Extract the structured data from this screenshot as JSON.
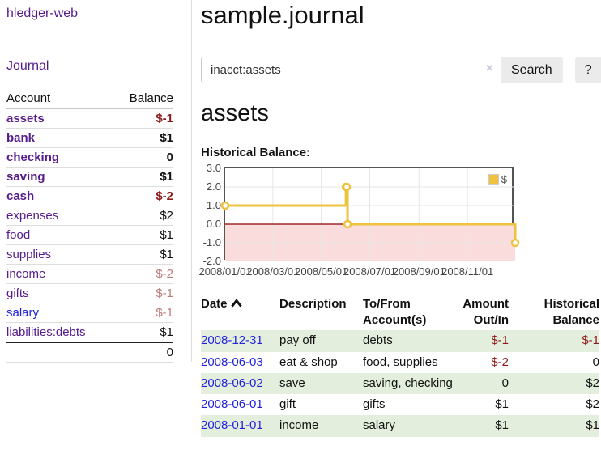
{
  "app": {
    "brand": "hledger-web",
    "nav_journal": "Journal"
  },
  "sidebar": {
    "account_header": "Account",
    "balance_header": "Balance",
    "accounts": [
      {
        "name": "assets",
        "balance": "$-1",
        "level": 1,
        "bold": true,
        "balance_class": "neg-strong"
      },
      {
        "name": "bank",
        "balance": "$1",
        "level": 2,
        "bold": true,
        "balance_class": ""
      },
      {
        "name": "checking",
        "balance": "0",
        "level": 3,
        "bold": true,
        "balance_class": ""
      },
      {
        "name": "saving",
        "balance": "$1",
        "level": 3,
        "bold": true,
        "balance_class": ""
      },
      {
        "name": "cash",
        "balance": "$-2",
        "level": 2,
        "bold": true,
        "balance_class": "neg-strong"
      },
      {
        "name": "expenses",
        "balance": "$2",
        "level": 1,
        "bold": false,
        "balance_class": ""
      },
      {
        "name": "food",
        "balance": "$1",
        "level": 2,
        "bold": false,
        "balance_class": ""
      },
      {
        "name": "supplies",
        "balance": "$1",
        "level": 2,
        "bold": false,
        "balance_class": ""
      },
      {
        "name": "income",
        "balance": "$-2",
        "level": 1,
        "bold": false,
        "balance_class": "neg-soft"
      },
      {
        "name": "gifts",
        "balance": "$-1",
        "level": 2,
        "bold": false,
        "balance_class": "neg-soft"
      },
      {
        "name": "salary",
        "balance": "$-1",
        "level": 2,
        "bold": false,
        "balance_class": "neg-soft",
        "link_class": "unvisited"
      },
      {
        "name": "liabilities:debts",
        "balance": "$1",
        "level": 1,
        "bold": false,
        "balance_class": ""
      }
    ],
    "total": "0"
  },
  "header": {
    "title": "sample.journal"
  },
  "search": {
    "value": "inacct:assets",
    "clear_label": "×",
    "button": "Search",
    "help": "?"
  },
  "account_page": {
    "heading": "assets",
    "chart_label": "Historical Balance:"
  },
  "chart_data": {
    "type": "line",
    "step": true,
    "title": "Historical Balance",
    "legend_position": "top-right",
    "series": [
      {
        "name": "$",
        "color": "#edc240",
        "points": [
          [
            "2008-01-01",
            1
          ],
          [
            "2008-06-01",
            2
          ],
          [
            "2008-06-02",
            2
          ],
          [
            "2008-06-03",
            0
          ],
          [
            "2008-12-31",
            -1
          ]
        ]
      }
    ],
    "x_domain": [
      "2008-01-01",
      "2008-12-31"
    ],
    "x_ticks": [
      "2008/01/01",
      "2008/03/01",
      "2008/05/01",
      "2008/07/01",
      "2008/09/01",
      "2008/11/01"
    ],
    "y_ticks": [
      "3.0",
      "2.0",
      "1.0",
      "0.0",
      "-1.0",
      "-2.0"
    ],
    "ylim": [
      -2,
      3
    ],
    "grid": true,
    "grid_color": "#e6e6e6",
    "border_color": "#545454",
    "zero_line_color": "#8b0000",
    "negative_fill": "#fbdcdc"
  },
  "register": {
    "headers": [
      "Date",
      "Description",
      "To/From Account(s)",
      "Amount Out/In",
      "Historical Balance"
    ],
    "rows": [
      {
        "date": "2008-12-31",
        "description": "pay off",
        "accounts": "debts",
        "amount": "$-1",
        "balance": "$-1",
        "amount_neg": true,
        "balance_neg": true
      },
      {
        "date": "2008-06-03",
        "description": "eat & shop",
        "accounts": "food, supplies",
        "amount": "$-2",
        "balance": "0",
        "amount_neg": true,
        "balance_neg": false
      },
      {
        "date": "2008-06-02",
        "description": "save",
        "accounts": "saving, checking",
        "amount": "0",
        "balance": "$2",
        "amount_neg": false,
        "balance_neg": false
      },
      {
        "date": "2008-06-01",
        "description": "gift",
        "accounts": "gifts",
        "amount": "$1",
        "balance": "$2",
        "amount_neg": false,
        "balance_neg": false
      },
      {
        "date": "2008-01-01",
        "description": "income",
        "accounts": "salary",
        "amount": "$1",
        "balance": "$1",
        "amount_neg": false,
        "balance_neg": false
      }
    ]
  }
}
